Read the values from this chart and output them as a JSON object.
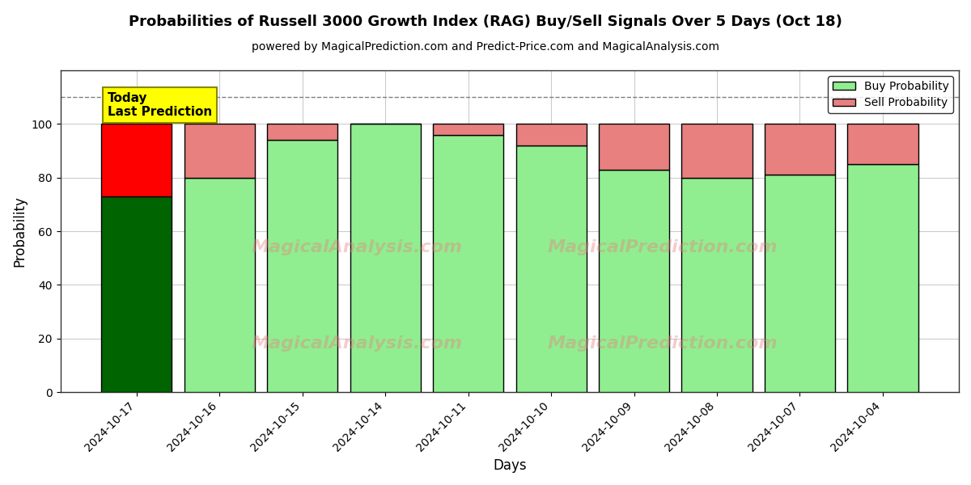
{
  "title": "Probabilities of Russell 3000 Growth Index (RAG) Buy/Sell Signals Over 5 Days (Oct 18)",
  "subtitle": "powered by MagicalPrediction.com and Predict-Price.com and MagicalAnalysis.com",
  "xlabel": "Days",
  "ylabel": "Probability",
  "dates": [
    "2024-10-17",
    "2024-10-16",
    "2024-10-15",
    "2024-10-14",
    "2024-10-11",
    "2024-10-10",
    "2024-10-09",
    "2024-10-08",
    "2024-10-07",
    "2024-10-04"
  ],
  "buy_values": [
    73,
    80,
    94,
    100,
    96,
    92,
    83,
    80,
    81,
    85
  ],
  "sell_values": [
    27,
    20,
    6,
    0,
    4,
    8,
    17,
    20,
    19,
    15
  ],
  "today_buy_color": "#006400",
  "today_sell_color": "#FF0000",
  "buy_color": "#90EE90",
  "sell_color": "#E88080",
  "bar_edge_color": "#000000",
  "ylim": [
    0,
    120
  ],
  "yticks": [
    0,
    20,
    40,
    60,
    80,
    100
  ],
  "dashed_line_y": 110,
  "background_color": "#ffffff",
  "grid_color": "#cccccc",
  "today_label": "Today\nLast Prediction",
  "legend_buy": "Buy Probability",
  "legend_sell": "Sell Probability",
  "watermark1": "MagicalAnalysis.com",
  "watermark2": "MagicalPrediction.com",
  "bar_width": 0.85
}
